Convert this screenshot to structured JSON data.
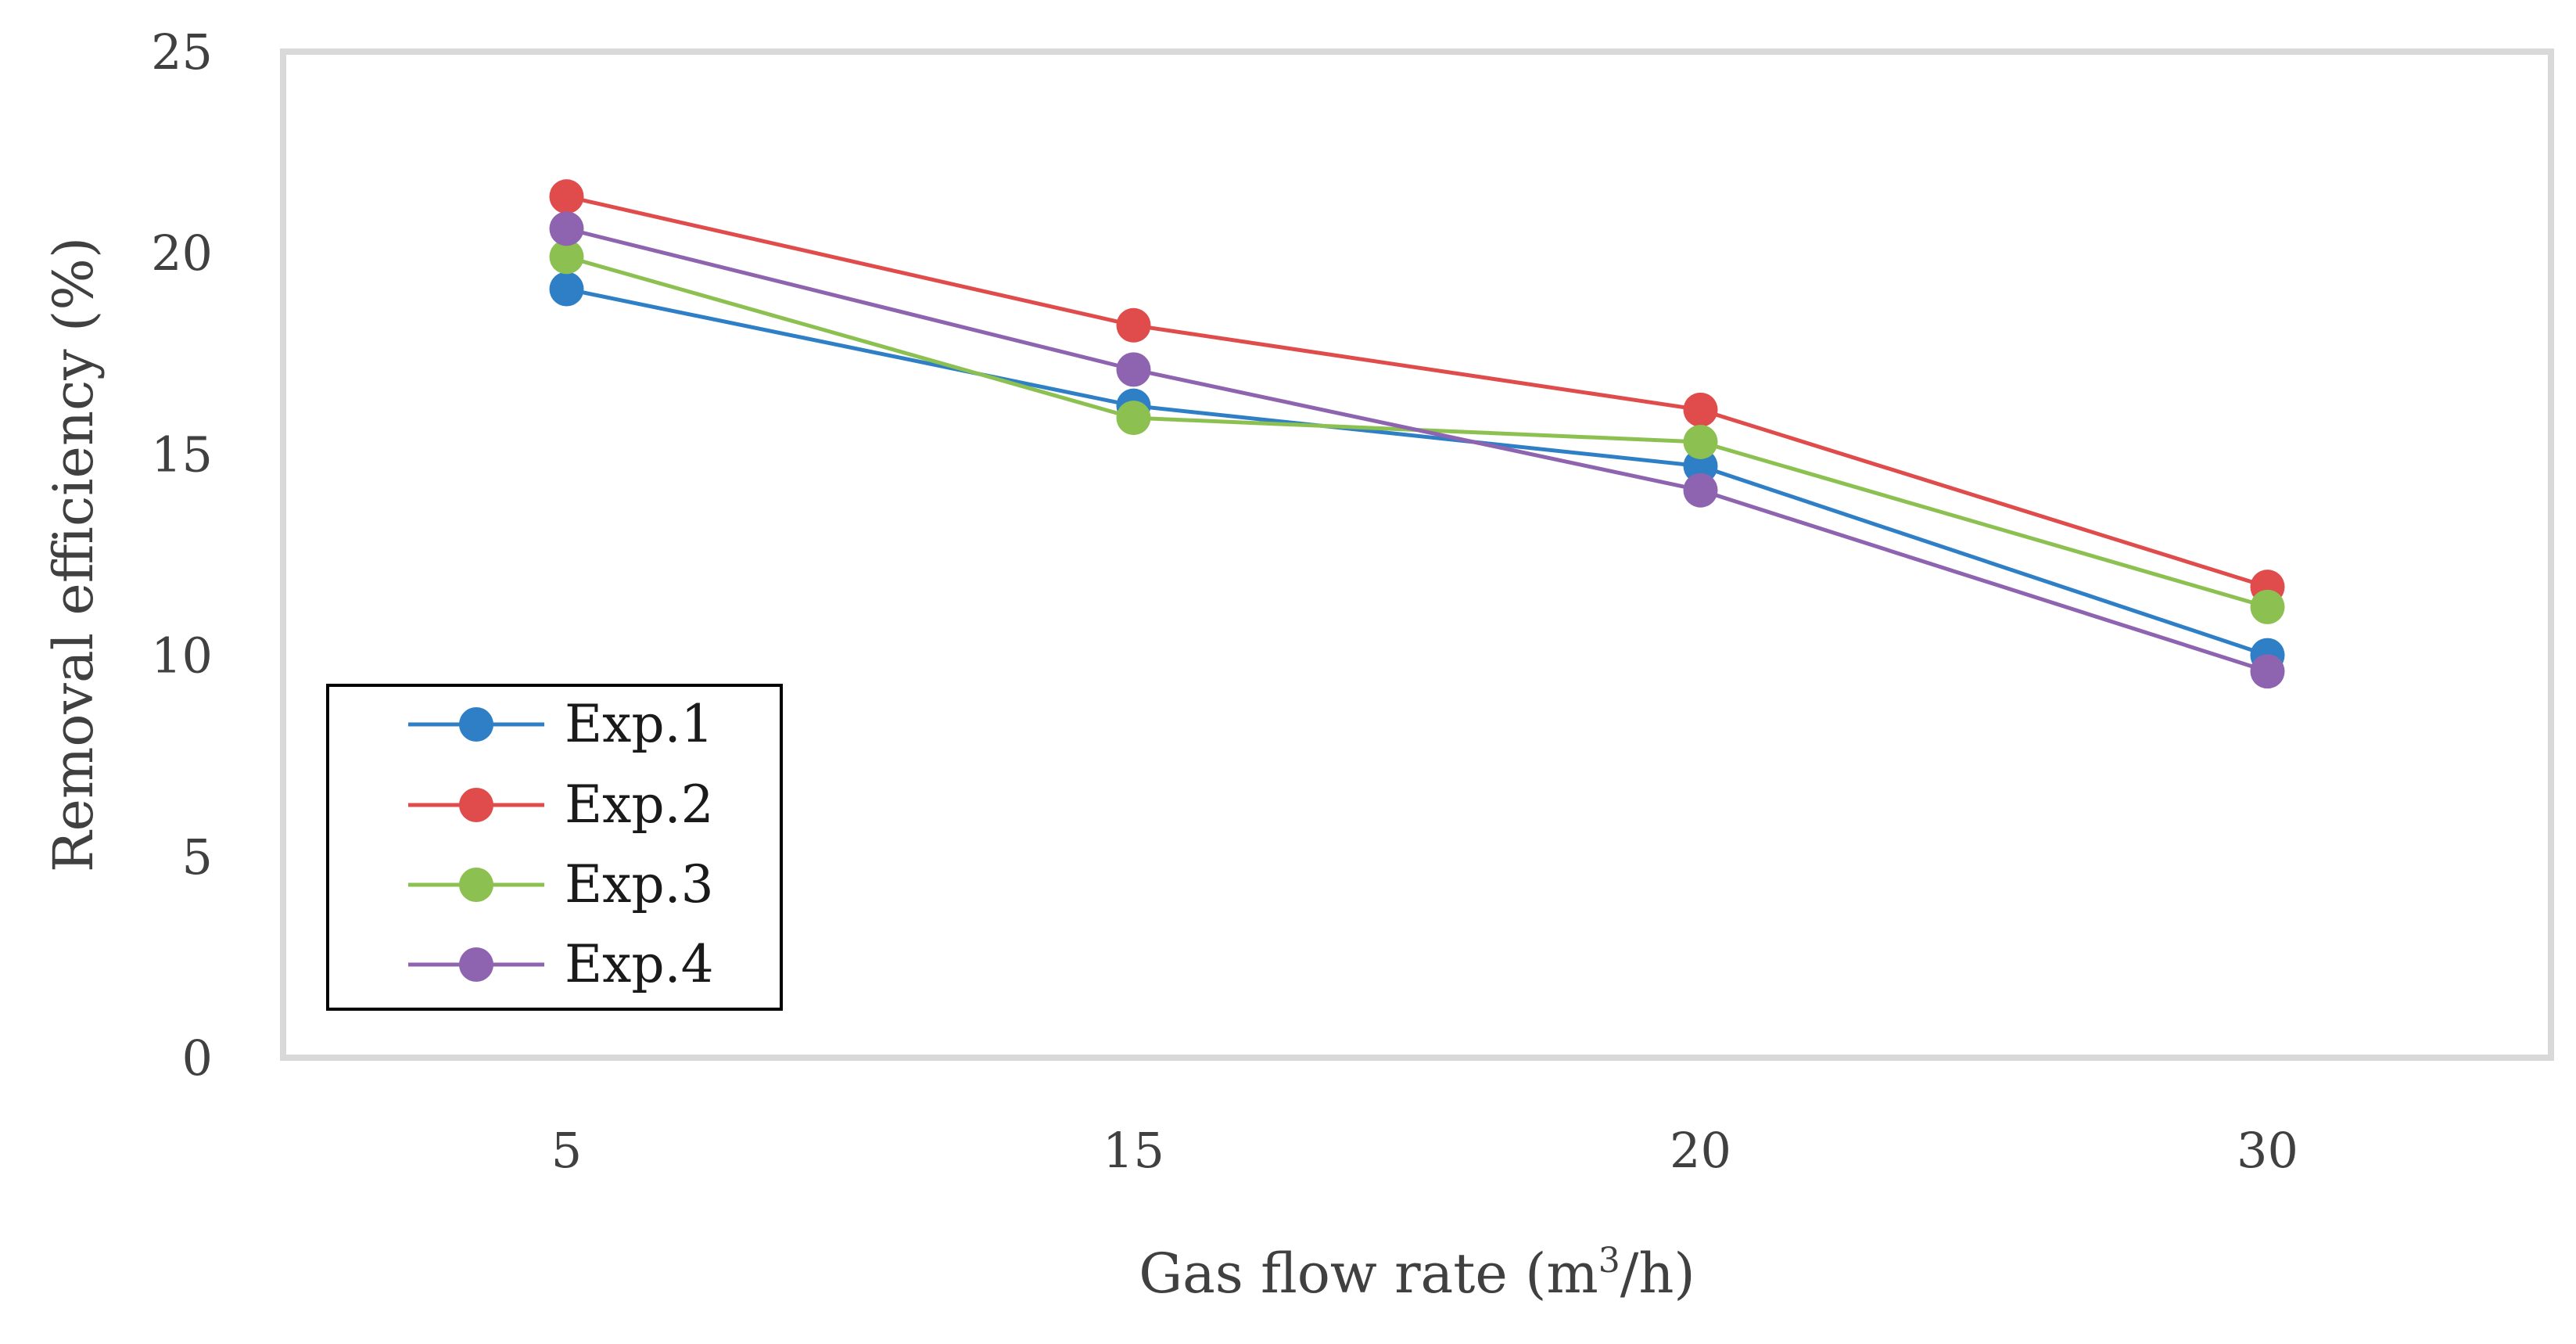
{
  "chart_data": {
    "type": "line",
    "title": "",
    "xlabel": "Gas flow rate (m³/h)",
    "xlabel_parts": {
      "prefix": "Gas flow rate (m",
      "sup": "3",
      "suffix": "/h)"
    },
    "ylabel": "Removal efficiency (%)",
    "categories": [
      "5",
      "15",
      "20",
      "30"
    ],
    "ylim": [
      0,
      25
    ],
    "yticks": [
      "0",
      "5",
      "10",
      "15",
      "20",
      "25"
    ],
    "grid": false,
    "legend_position": "lower-left",
    "series": [
      {
        "name": "Exp.1",
        "color": "#2E7FC6",
        "values": [
          19.1,
          16.2,
          14.7,
          10.0
        ]
      },
      {
        "name": "Exp.2",
        "color": "#E04B4B",
        "values": [
          21.4,
          18.2,
          16.1,
          11.7
        ]
      },
      {
        "name": "Exp.3",
        "color": "#8CC152",
        "values": [
          19.9,
          15.9,
          15.3,
          11.2
        ]
      },
      {
        "name": "Exp.4",
        "color": "#8E63B0",
        "values": [
          20.6,
          17.1,
          14.1,
          9.6
        ]
      }
    ]
  }
}
